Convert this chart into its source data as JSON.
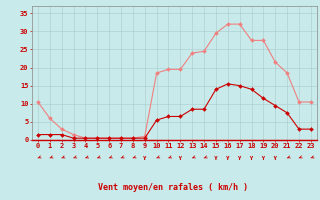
{
  "x": [
    0,
    1,
    2,
    3,
    4,
    5,
    6,
    7,
    8,
    9,
    10,
    11,
    12,
    13,
    14,
    15,
    16,
    17,
    18,
    19,
    20,
    21,
    22,
    23
  ],
  "rafales": [
    10.5,
    6.0,
    3.0,
    1.5,
    0.5,
    0.5,
    0.5,
    0.5,
    0.5,
    1.0,
    18.5,
    19.5,
    19.5,
    24.0,
    24.5,
    29.5,
    32.0,
    32.0,
    27.5,
    27.5,
    21.5,
    18.5,
    10.5,
    10.5
  ],
  "moyen": [
    1.5,
    1.5,
    1.5,
    0.5,
    0.5,
    0.5,
    0.5,
    0.5,
    0.5,
    0.5,
    5.5,
    6.5,
    6.5,
    8.5,
    8.5,
    14.0,
    15.5,
    15.0,
    14.0,
    11.5,
    9.5,
    7.5,
    3.0,
    3.0
  ],
  "rafales_color": "#f08080",
  "moyen_color": "#cc0000",
  "bg_color": "#c8eaea",
  "grid_color": "#a8caca",
  "axis_color": "#cc0000",
  "spine_color": "#888888",
  "xlabel": "Vent moyen/en rafales ( km/h )",
  "ylim": [
    0,
    37
  ],
  "xlim": [
    -0.5,
    23.5
  ],
  "yticks": [
    0,
    5,
    10,
    15,
    20,
    25,
    30,
    35
  ],
  "xticks": [
    0,
    1,
    2,
    3,
    4,
    5,
    6,
    7,
    8,
    9,
    10,
    11,
    12,
    13,
    14,
    15,
    16,
    17,
    18,
    19,
    20,
    21,
    22,
    23
  ],
  "tick_fontsize": 5.0,
  "xlabel_fontsize": 6.0,
  "arrow_angles": [
    225,
    225,
    225,
    225,
    225,
    225,
    225,
    225,
    225,
    270,
    225,
    225,
    270,
    225,
    225,
    270,
    270,
    270,
    270,
    270,
    270,
    225,
    225,
    225
  ]
}
